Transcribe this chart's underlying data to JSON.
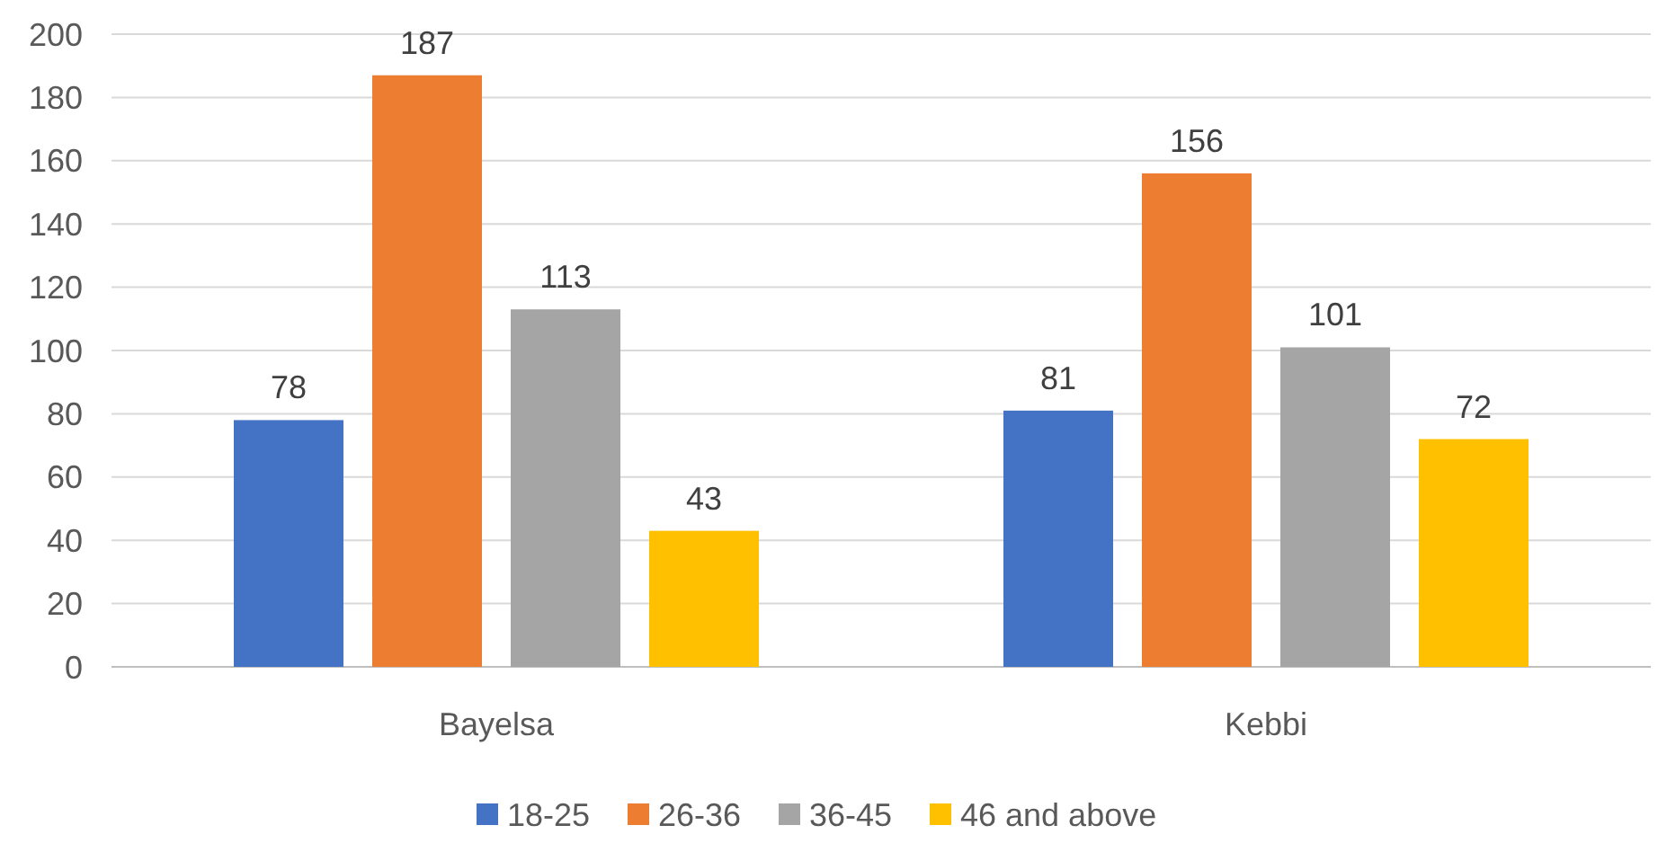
{
  "chart_data": {
    "type": "bar",
    "categories": [
      "Bayelsa",
      "Kebbi"
    ],
    "series": [
      {
        "name": "18-25",
        "color": "#4472c4",
        "values": [
          78,
          81
        ]
      },
      {
        "name": "26-36",
        "color": "#ed7d31",
        "values": [
          187,
          156
        ]
      },
      {
        "name": "36-45",
        "color": "#a5a5a5",
        "values": [
          113,
          101
        ]
      },
      {
        "name": "46 and above",
        "color": "#ffc000",
        "values": [
          43,
          72
        ]
      }
    ],
    "ylim": [
      0,
      200
    ],
    "yticks": [
      0,
      20,
      40,
      60,
      80,
      100,
      120,
      140,
      160,
      180,
      200
    ],
    "grid": "y",
    "legend": "bottom",
    "data_labels": true
  }
}
